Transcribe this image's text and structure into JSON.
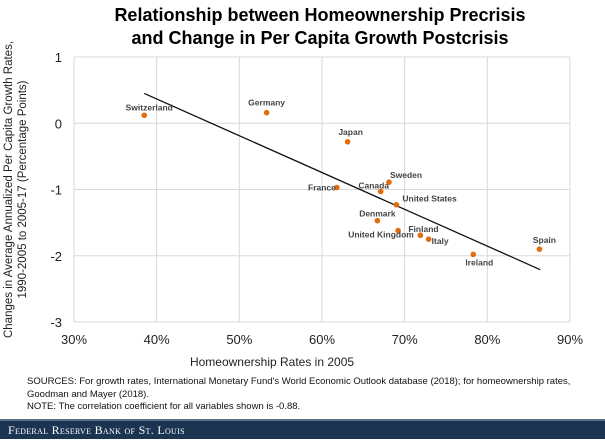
{
  "chart_data": {
    "type": "scatter",
    "title": "Relationship between Homeownership Precrisis and Change in Per Capita Growth Postcrisis",
    "title_lines": [
      "Relationship between Homeownership Precrisis",
      "and Change in Per Capita Growth Postcrisis"
    ],
    "xlabel": "Homeownership Rates in 2005",
    "ylabel_lines": [
      "Changes in Average Annualized Per Capita Growth Rates,",
      "1990-2005 to 2005-17 (Percentage Points)"
    ],
    "xlim": [
      30,
      90
    ],
    "ylim": [
      -3,
      1
    ],
    "xticks": [
      "30%",
      "40%",
      "50%",
      "60%",
      "70%",
      "80%",
      "90%"
    ],
    "yticks": [
      "1",
      "0",
      "-1",
      "-2",
      "-3"
    ],
    "grid": true,
    "point_color": "#e36c0a",
    "points": [
      {
        "label": "Switzerland",
        "x": 38.5,
        "y": 0.12
      },
      {
        "label": "Germany",
        "x": 53.3,
        "y": 0.16
      },
      {
        "label": "Japan",
        "x": 63.1,
        "y": -0.28
      },
      {
        "label": "France",
        "x": 61.8,
        "y": -0.97
      },
      {
        "label": "Canada",
        "x": 67.1,
        "y": -1.03
      },
      {
        "label": "Sweden",
        "x": 68.1,
        "y": -0.89
      },
      {
        "label": "United States",
        "x": 69.0,
        "y": -1.23
      },
      {
        "label": "Denmark",
        "x": 66.7,
        "y": -1.47
      },
      {
        "label": "United Kingdom",
        "x": 69.2,
        "y": -1.62
      },
      {
        "label": "Finland",
        "x": 71.9,
        "y": -1.69
      },
      {
        "label": "Italy",
        "x": 72.9,
        "y": -1.75
      },
      {
        "label": "Ireland",
        "x": 78.3,
        "y": -1.98
      },
      {
        "label": "Spain",
        "x": 86.3,
        "y": -1.9
      }
    ],
    "trendline": {
      "x": [
        38.5,
        86.4
      ],
      "y": [
        0.45,
        -2.21
      ]
    }
  },
  "footer": {
    "sources": "SOURCES: For growth rates, International Monetary Fund's World Economic Outlook database (2018); for homeownership rates, Goodman and Mayer (2018).",
    "note": "NOTE: The correlation coefficient for all variables shown is -0.88.",
    "banner": "Federal Reserve Bank of St. Louis"
  }
}
